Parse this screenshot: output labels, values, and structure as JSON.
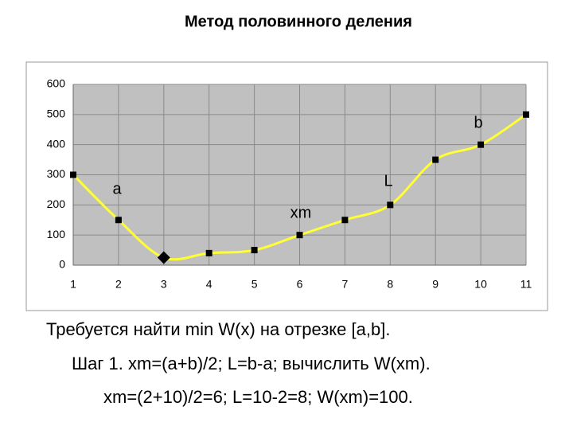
{
  "chart_data": {
    "type": "line",
    "title": "Метод половинного деления",
    "x": [
      1,
      2,
      3,
      4,
      5,
      6,
      7,
      8,
      9,
      10,
      11
    ],
    "series": [
      {
        "color": "#ffff33",
        "values": [
          300,
          150,
          25,
          40,
          50,
          100,
          150,
          200,
          350,
          400,
          500
        ],
        "markers": [
          "square",
          "square",
          "diamond",
          "square",
          "square",
          "square",
          "square",
          "square",
          "square",
          "square",
          "square"
        ]
      }
    ],
    "xlim": [
      1,
      11
    ],
    "xticks": [
      1,
      2,
      3,
      4,
      5,
      6,
      7,
      8,
      9,
      10,
      11
    ],
    "ylim": [
      0,
      600
    ],
    "yticks": [
      0,
      100,
      200,
      300,
      400,
      500,
      600
    ],
    "grid": true,
    "annotations": [
      "a",
      "b",
      "L",
      "xm"
    ],
    "text_lines": [
      "Требуется найти min W(x) на отрезке [a,b].",
      "Шаг 1. xm=(a+b)/2; L=b-a; вычислить W(xm).",
      "xm=(2+10)/2=6; L=10-2=8; W(xm)=100."
    ]
  }
}
